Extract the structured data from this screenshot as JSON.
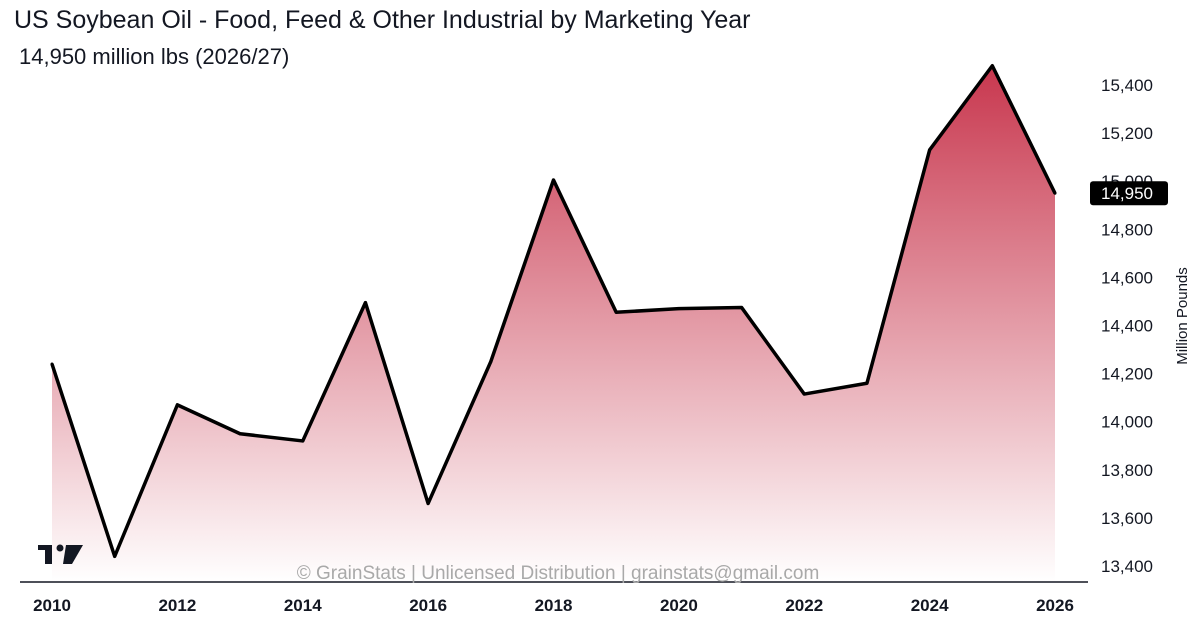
{
  "chart_data": {
    "type": "area",
    "title": "US Soybean Oil - Food, Feed & Other Industrial by Marketing Year",
    "subtitle": "14,950 million lbs (2026/27)",
    "ylabel": "Million Pounds",
    "xlabel": "",
    "x": [
      2010,
      2011,
      2012,
      2013,
      2014,
      2015,
      2016,
      2017,
      2018,
      2019,
      2020,
      2021,
      2022,
      2023,
      2024,
      2025,
      2026
    ],
    "values": [
      14240,
      13440,
      14070,
      13950,
      13920,
      14495,
      13660,
      14250,
      15005,
      14455,
      14470,
      14475,
      14115,
      14160,
      15130,
      15480,
      14950
    ],
    "x_ticks": [
      "2010",
      "2012",
      "2014",
      "2016",
      "2018",
      "2020",
      "2022",
      "2024",
      "2026"
    ],
    "y_ticks": [
      "13,400",
      "13,600",
      "13,800",
      "14,000",
      "14,200",
      "14,400",
      "14,600",
      "14,800",
      "15,000",
      "15,200",
      "15,400"
    ],
    "ylim": [
      13340,
      15520
    ],
    "last_value_label": "14,950",
    "line_color": "#000000",
    "fill_color_top": "#c8374e",
    "fill_color_bottom": "#ffffff",
    "watermark": "© GrainStats | Unlicensed Distribution | grainstats@gmail.com",
    "logo_text": "TV"
  }
}
